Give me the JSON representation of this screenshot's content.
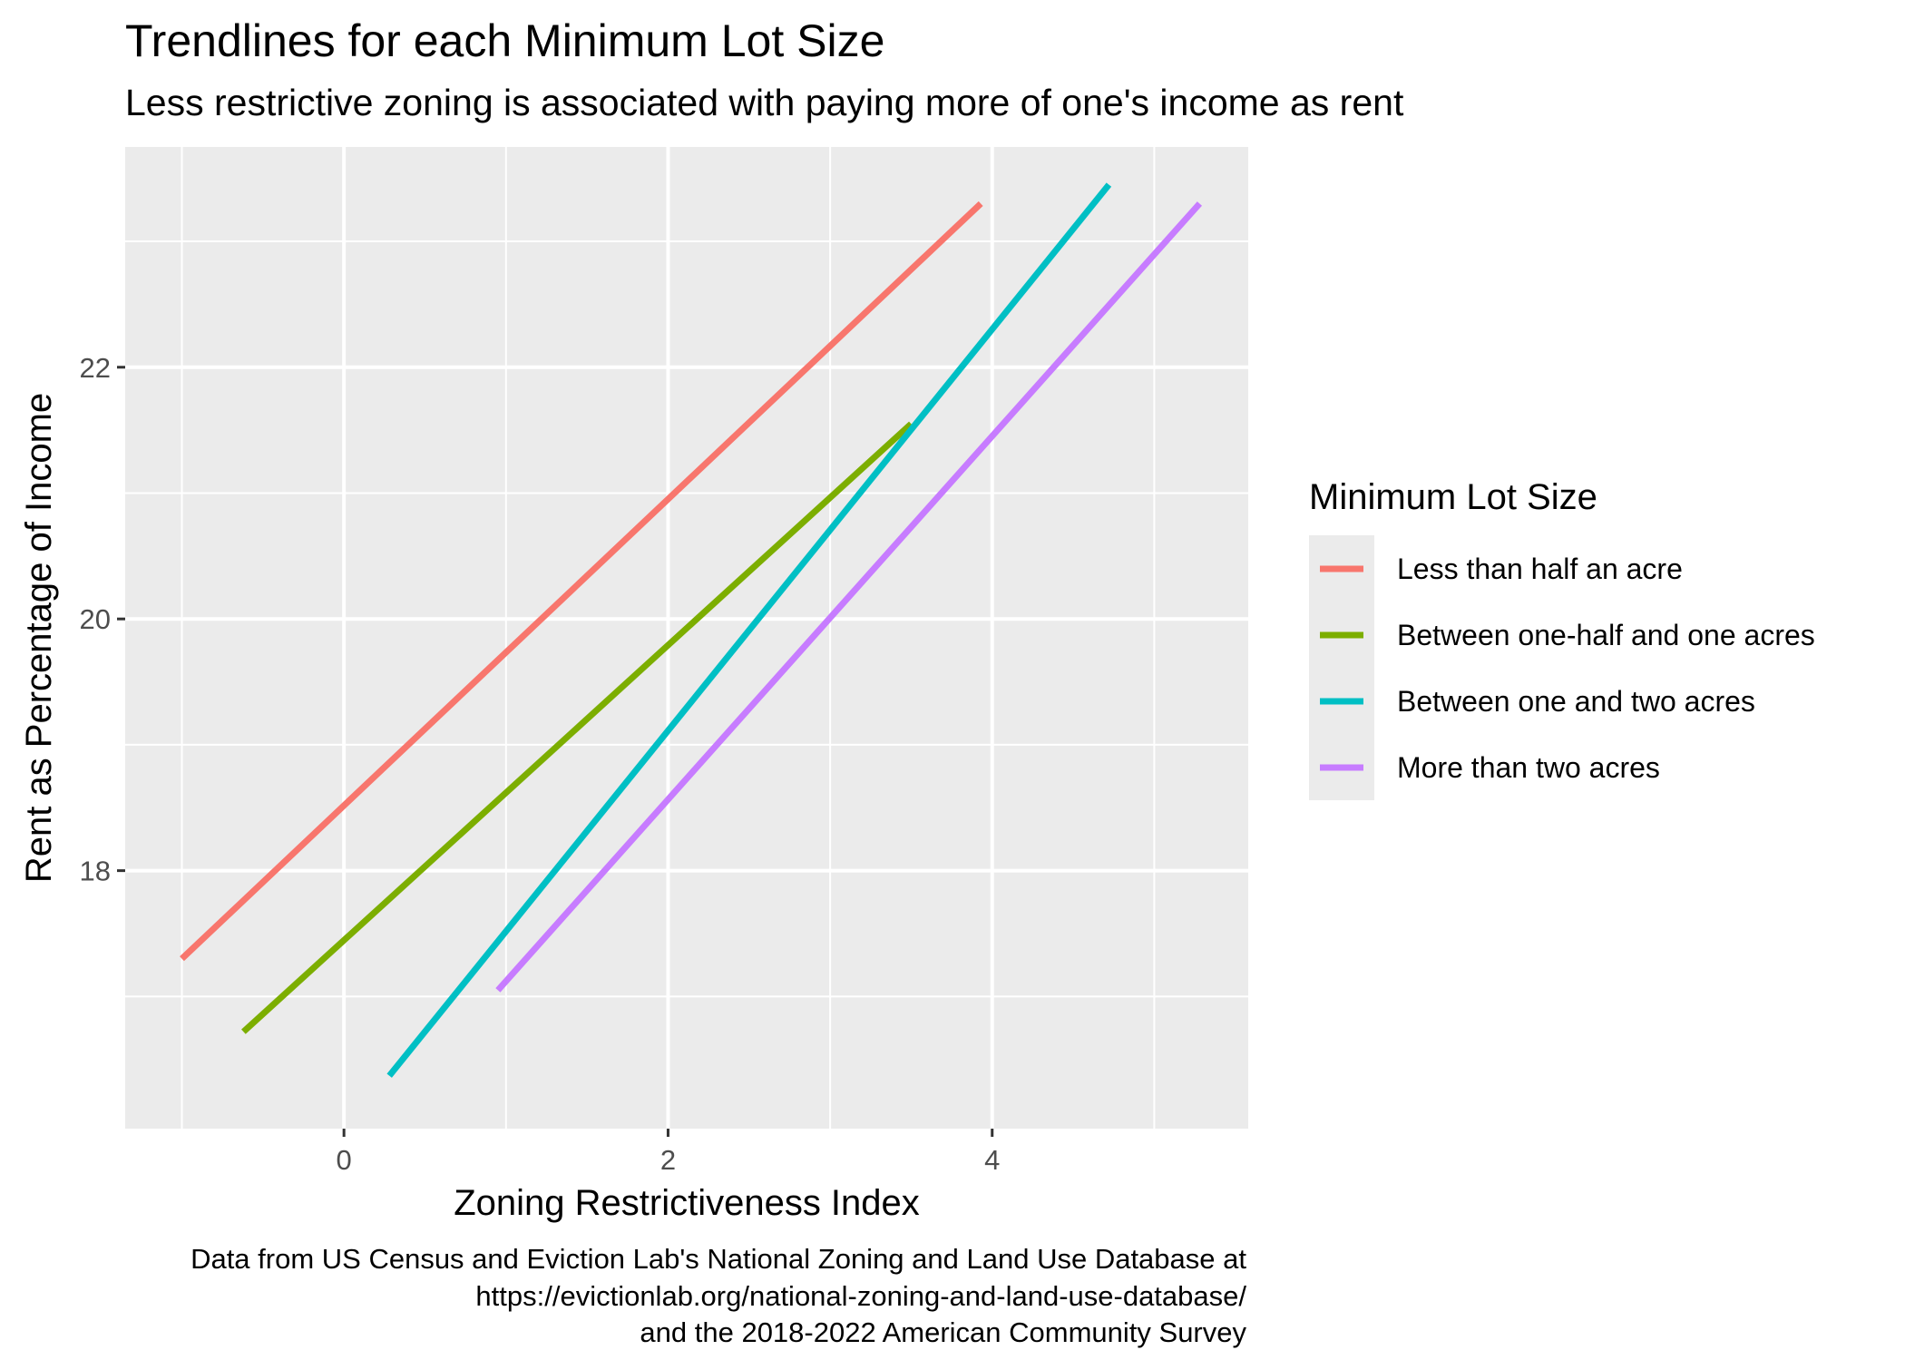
{
  "chart_data": {
    "type": "line",
    "title": "Trendlines for each Minimum Lot Size",
    "subtitle": "Less restrictive zoning is associated with paying more of one's income as rent",
    "xlabel": "Zoning Restrictiveness Index",
    "ylabel": "Rent as Percentage of Income",
    "xlim": [
      -1.35,
      5.58
    ],
    "ylim": [
      15.95,
      23.75
    ],
    "x_ticks": [
      0,
      2,
      4
    ],
    "x_tick_labels": [
      "0",
      "2",
      "4"
    ],
    "x_minor_ticks": [
      -1,
      1,
      3,
      5
    ],
    "y_ticks": [
      18,
      20,
      22
    ],
    "y_tick_labels": [
      "18",
      "20",
      "22"
    ],
    "y_minor_ticks": [
      17,
      19,
      21,
      23
    ],
    "grid": true,
    "background": "#ebebeb",
    "legend": {
      "title": "Minimum Lot Size",
      "position": "right"
    },
    "series": [
      {
        "name": "Less than half an acre",
        "color": "#f8766d",
        "x": [
          -1.0,
          3.93
        ],
        "y": [
          17.3,
          23.3
        ]
      },
      {
        "name": "Between one-half and one acres",
        "color": "#7cae00",
        "x": [
          -0.62,
          3.5
        ],
        "y": [
          16.72,
          21.55
        ]
      },
      {
        "name": "Between one and two acres",
        "color": "#00bfc4",
        "x": [
          0.28,
          4.72
        ],
        "y": [
          16.37,
          23.45
        ]
      },
      {
        "name": "More than two acres",
        "color": "#c77cff",
        "x": [
          0.95,
          5.28
        ],
        "y": [
          17.05,
          23.3
        ]
      }
    ]
  },
  "caption": [
    "Data from US Census and Eviction Lab's National Zoning and Land Use Database at",
    "https://evictionlab.org/national-zoning-and-land-use-database/",
    "and the 2018-2022 American Community Survey"
  ]
}
